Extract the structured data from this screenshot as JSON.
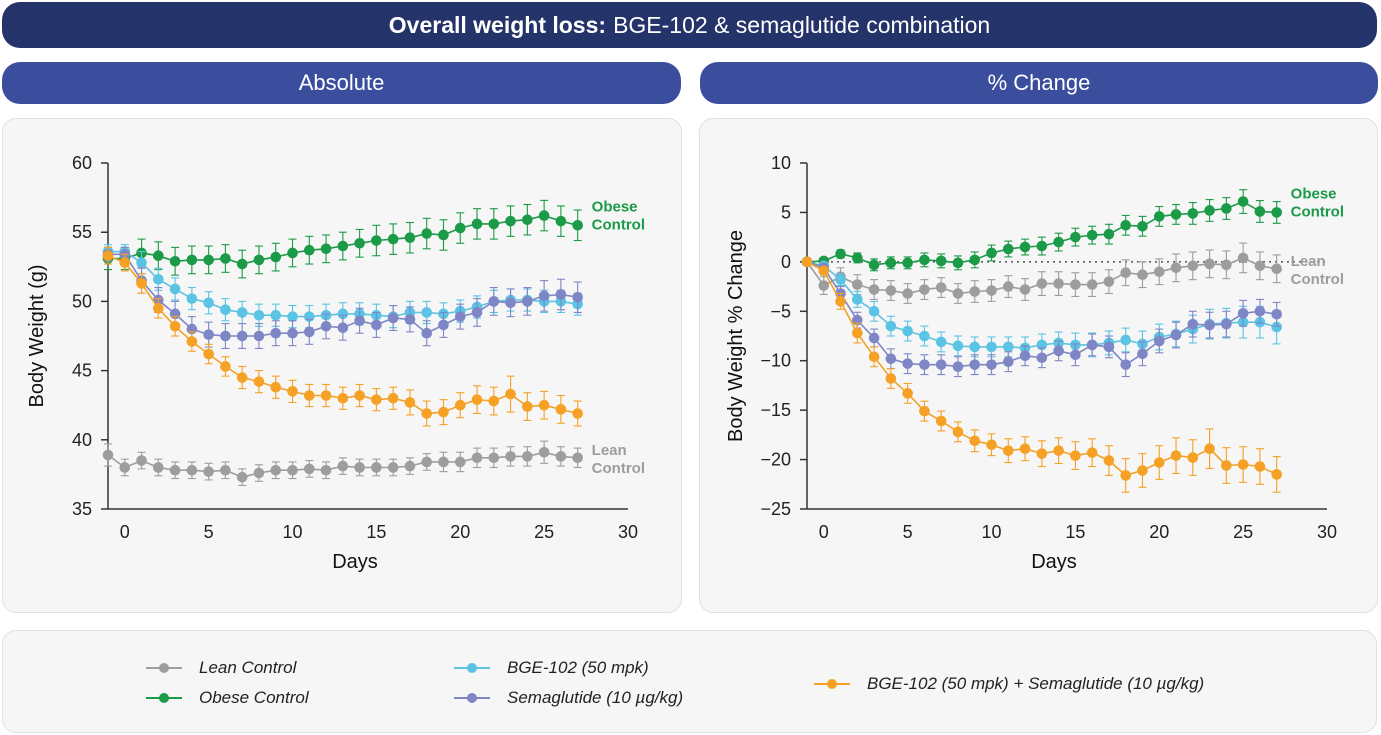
{
  "banner": {
    "title_bold": "Overall weight loss:",
    "title_rest": "BGE-102 & semaglutide combination"
  },
  "headers": {
    "absolute": "Absolute",
    "pct": "% Change"
  },
  "colors": {
    "lean": "#9d9d9d",
    "obese": "#1b9a47",
    "bge": "#5bc3e3",
    "sema": "#7f86c6",
    "combo": "#f4a125",
    "banner": "#25336b",
    "subheader": "#3b4e9e"
  },
  "legend": [
    {
      "key": "lean",
      "label": "Lean Control"
    },
    {
      "key": "obese",
      "label": "Obese Control"
    },
    {
      "key": "bge",
      "label": "BGE-102 (50 mpk)"
    },
    {
      "key": "sema",
      "label": "Semaglutide (10 µg/kg)"
    },
    {
      "key": "combo",
      "label": "BGE-102 (50 mpk) + Semaglutide (10 µg/kg)"
    }
  ],
  "chart_data": [
    {
      "type": "line",
      "xlabel": "Days",
      "ylabel": "Body Weight (g)",
      "xlim": [
        -1,
        30
      ],
      "ylim": [
        35,
        60
      ],
      "xticks": [
        0,
        5,
        10,
        15,
        20,
        25,
        30
      ],
      "yticks": [
        35,
        40,
        45,
        50,
        55,
        60
      ],
      "zero_line": false,
      "grid": false,
      "x": [
        -1,
        0,
        1,
        2,
        3,
        4,
        5,
        6,
        7,
        8,
        9,
        10,
        11,
        12,
        13,
        14,
        15,
        16,
        17,
        18,
        19,
        20,
        21,
        22,
        23,
        24,
        25,
        26,
        27
      ],
      "annotations": [
        {
          "series": "obese",
          "lines": [
            "Obese",
            "Control"
          ]
        },
        {
          "series": "lean",
          "lines": [
            "Lean",
            "Control"
          ]
        }
      ],
      "series": [
        {
          "key": "lean",
          "name": "Lean Control",
          "values": [
            38.9,
            38.0,
            38.5,
            38.0,
            37.8,
            37.8,
            37.7,
            37.8,
            37.3,
            37.6,
            37.8,
            37.8,
            37.9,
            37.8,
            38.1,
            38.0,
            38.0,
            38.0,
            38.1,
            38.4,
            38.4,
            38.4,
            38.7,
            38.7,
            38.8,
            38.8,
            39.1,
            38.8,
            38.7
          ],
          "errors": [
            0.8,
            0.6,
            0.6,
            0.6,
            0.6,
            0.6,
            0.6,
            0.6,
            0.6,
            0.6,
            0.6,
            0.6,
            0.6,
            0.6,
            0.6,
            0.6,
            0.6,
            0.6,
            0.6,
            0.6,
            0.7,
            0.7,
            0.7,
            0.7,
            0.7,
            0.7,
            0.8,
            0.7,
            0.7
          ]
        },
        {
          "key": "obese",
          "name": "Obese Control",
          "values": [
            53.1,
            53.1,
            53.5,
            53.3,
            52.9,
            53.0,
            53.0,
            53.1,
            52.7,
            53.0,
            53.2,
            53.5,
            53.7,
            53.8,
            54.0,
            54.2,
            54.4,
            54.5,
            54.6,
            54.9,
            54.8,
            55.3,
            55.6,
            55.6,
            55.8,
            55.9,
            56.2,
            55.8,
            55.5
          ],
          "errors": [
            0.8,
            0.8,
            1.0,
            1.0,
            1.0,
            1.0,
            1.0,
            1.0,
            1.0,
            1.0,
            1.0,
            1.0,
            1.0,
            1.0,
            1.0,
            1.0,
            1.1,
            1.1,
            1.1,
            1.1,
            1.1,
            1.1,
            1.1,
            1.1,
            1.1,
            1.1,
            1.1,
            1.1,
            1.1
          ]
        },
        {
          "key": "bge",
          "name": "BGE-102 (50 mpk)",
          "values": [
            53.6,
            53.6,
            52.8,
            51.6,
            50.9,
            50.2,
            49.9,
            49.4,
            49.2,
            49.0,
            49.0,
            48.9,
            48.9,
            49.0,
            49.1,
            49.1,
            49.0,
            48.9,
            49.2,
            49.2,
            49.1,
            49.3,
            49.6,
            50.0,
            50.1,
            50.1,
            50.0,
            50.0,
            49.8
          ],
          "errors": [
            0.5,
            0.5,
            0.8,
            0.8,
            0.8,
            0.8,
            0.8,
            0.8,
            0.8,
            0.8,
            0.8,
            0.8,
            0.8,
            0.8,
            0.8,
            0.8,
            0.8,
            0.8,
            0.8,
            0.8,
            0.8,
            0.8,
            0.8,
            0.8,
            0.8,
            0.8,
            0.8,
            0.8,
            0.8
          ]
        },
        {
          "key": "sema",
          "name": "Semaglutide (10 µg/kg)",
          "values": [
            53.4,
            53.4,
            51.5,
            50.1,
            49.1,
            48.0,
            47.6,
            47.5,
            47.5,
            47.5,
            47.7,
            47.7,
            47.8,
            48.2,
            48.1,
            48.6,
            48.3,
            48.8,
            48.7,
            47.7,
            48.3,
            48.9,
            49.2,
            50.0,
            49.9,
            50.0,
            50.4,
            50.5,
            50.3
          ],
          "errors": [
            0.5,
            0.5,
            0.9,
            0.9,
            0.9,
            0.9,
            0.9,
            0.9,
            0.9,
            0.9,
            0.9,
            0.9,
            0.9,
            0.9,
            0.9,
            0.9,
            0.9,
            0.9,
            0.9,
            0.9,
            0.9,
            0.9,
            1.0,
            1.0,
            1.0,
            1.0,
            1.1,
            1.1,
            1.1
          ]
        },
        {
          "key": "combo",
          "name": "BGE-102 (50 mpk) + Semaglutide (10 µg/kg)",
          "values": [
            53.3,
            52.8,
            51.3,
            49.5,
            48.2,
            47.1,
            46.2,
            45.3,
            44.5,
            44.2,
            43.8,
            43.5,
            43.2,
            43.2,
            43.0,
            43.2,
            42.9,
            43.0,
            42.7,
            41.9,
            42.0,
            42.5,
            42.9,
            42.8,
            43.3,
            42.4,
            42.5,
            42.2,
            41.9
          ],
          "errors": [
            0.6,
            0.6,
            0.7,
            0.7,
            0.7,
            0.7,
            0.7,
            0.7,
            0.8,
            0.8,
            0.8,
            0.8,
            0.8,
            0.8,
            0.8,
            0.8,
            0.8,
            0.8,
            0.9,
            0.9,
            0.9,
            0.9,
            1.0,
            1.0,
            1.3,
            1.0,
            1.0,
            1.0,
            0.9
          ]
        }
      ]
    },
    {
      "type": "line",
      "xlabel": "Days",
      "ylabel": "Body Weight % Change",
      "xlim": [
        -1,
        30
      ],
      "ylim": [
        -25,
        10
      ],
      "xticks": [
        0,
        5,
        10,
        15,
        20,
        25,
        30
      ],
      "yticks": [
        -25,
        -20,
        -15,
        -10,
        -5,
        0,
        5,
        10
      ],
      "zero_line": true,
      "grid": false,
      "x": [
        -1,
        0,
        1,
        2,
        3,
        4,
        5,
        6,
        7,
        8,
        9,
        10,
        11,
        12,
        13,
        14,
        15,
        16,
        17,
        18,
        19,
        20,
        21,
        22,
        23,
        24,
        25,
        26,
        27
      ],
      "annotations": [
        {
          "series": "obese",
          "lines": [
            "Obese",
            "Control"
          ]
        },
        {
          "series": "lean",
          "lines": [
            "Lean",
            "Control"
          ]
        }
      ],
      "series": [
        {
          "key": "lean",
          "name": "Lean Control",
          "values": [
            0,
            -2.4,
            -1.5,
            -2.3,
            -2.8,
            -2.9,
            -3.2,
            -2.8,
            -2.6,
            -3.2,
            -3.0,
            -2.9,
            -2.5,
            -2.8,
            -2.2,
            -2.2,
            -2.3,
            -2.3,
            -2.0,
            -1.1,
            -1.3,
            -1.0,
            -0.6,
            -0.4,
            -0.2,
            -0.3,
            0.4,
            -0.4,
            -0.7
          ],
          "errors": [
            0,
            0.9,
            0.9,
            1.0,
            1.0,
            1.0,
            1.0,
            1.0,
            1.0,
            1.0,
            1.1,
            1.1,
            1.1,
            1.1,
            1.2,
            1.2,
            1.2,
            1.2,
            1.2,
            1.3,
            1.3,
            1.3,
            1.4,
            1.4,
            1.4,
            1.4,
            1.5,
            1.4,
            1.4
          ]
        },
        {
          "key": "obese",
          "name": "Obese Control",
          "values": [
            0,
            0.1,
            0.8,
            0.4,
            -0.3,
            -0.1,
            -0.1,
            0.2,
            0.1,
            -0.1,
            0.2,
            0.9,
            1.3,
            1.5,
            1.6,
            2.0,
            2.5,
            2.7,
            2.8,
            3.7,
            3.6,
            4.6,
            4.8,
            4.9,
            5.2,
            5.4,
            6.1,
            5.1,
            5.0
          ],
          "errors": [
            0,
            0.2,
            0.4,
            0.5,
            0.6,
            0.6,
            0.6,
            0.7,
            0.7,
            0.7,
            0.8,
            0.8,
            0.8,
            0.8,
            0.9,
            0.9,
            0.9,
            0.9,
            1.0,
            1.0,
            1.0,
            1.0,
            1.0,
            1.1,
            1.1,
            1.1,
            1.2,
            1.1,
            1.1
          ]
        },
        {
          "key": "bge",
          "name": "BGE-102 (50 mpk)",
          "values": [
            0,
            -0.4,
            -1.8,
            -3.8,
            -5.0,
            -6.5,
            -7.0,
            -7.5,
            -8.1,
            -8.5,
            -8.6,
            -8.6,
            -8.6,
            -8.7,
            -8.4,
            -8.2,
            -8.4,
            -8.4,
            -8.2,
            -7.9,
            -8.3,
            -7.6,
            -7.3,
            -6.8,
            -6.3,
            -6.2,
            -6.1,
            -6.1,
            -6.6
          ],
          "errors": [
            0,
            0.3,
            0.6,
            0.8,
            1.0,
            1.0,
            1.0,
            1.0,
            1.0,
            1.0,
            1.0,
            1.0,
            1.0,
            1.1,
            1.1,
            1.1,
            1.2,
            1.2,
            1.2,
            1.2,
            1.3,
            1.3,
            1.3,
            1.4,
            1.5,
            1.5,
            1.6,
            1.6,
            1.7
          ]
        },
        {
          "key": "sema",
          "name": "Semaglutide (10 µg/kg)",
          "values": [
            0,
            -0.6,
            -3.2,
            -5.9,
            -7.7,
            -9.8,
            -10.3,
            -10.4,
            -10.4,
            -10.6,
            -10.4,
            -10.4,
            -10.1,
            -9.5,
            -9.7,
            -9.0,
            -9.4,
            -8.4,
            -8.6,
            -10.4,
            -9.3,
            -8.0,
            -7.4,
            -6.3,
            -6.4,
            -6.3,
            -5.2,
            -5.0,
            -5.3
          ],
          "errors": [
            0,
            0.3,
            0.7,
            0.8,
            0.9,
            1.0,
            1.0,
            1.0,
            1.0,
            1.0,
            1.0,
            1.0,
            1.0,
            1.0,
            1.0,
            1.0,
            1.1,
            1.1,
            1.1,
            1.2,
            1.2,
            1.2,
            1.3,
            1.3,
            1.3,
            1.3,
            1.3,
            1.2,
            1.2
          ]
        },
        {
          "key": "combo",
          "name": "BGE-102 (50 mpk) + Semaglutide (10 µg/kg)",
          "values": [
            0,
            -0.9,
            -4.0,
            -7.2,
            -9.6,
            -11.8,
            -13.3,
            -15.1,
            -16.1,
            -17.2,
            -18.1,
            -18.5,
            -19.1,
            -18.9,
            -19.4,
            -19.1,
            -19.6,
            -19.3,
            -20.1,
            -21.6,
            -21.1,
            -20.3,
            -19.6,
            -19.8,
            -18.9,
            -20.6,
            -20.5,
            -20.7,
            -21.5
          ],
          "errors": [
            0,
            0.4,
            0.8,
            1.0,
            1.0,
            1.0,
            1.0,
            1.0,
            1.0,
            1.0,
            1.1,
            1.1,
            1.2,
            1.2,
            1.3,
            1.3,
            1.4,
            1.4,
            1.5,
            1.7,
            1.7,
            1.7,
            1.8,
            1.8,
            2.0,
            1.8,
            1.8,
            1.8,
            1.8
          ]
        }
      ]
    }
  ]
}
